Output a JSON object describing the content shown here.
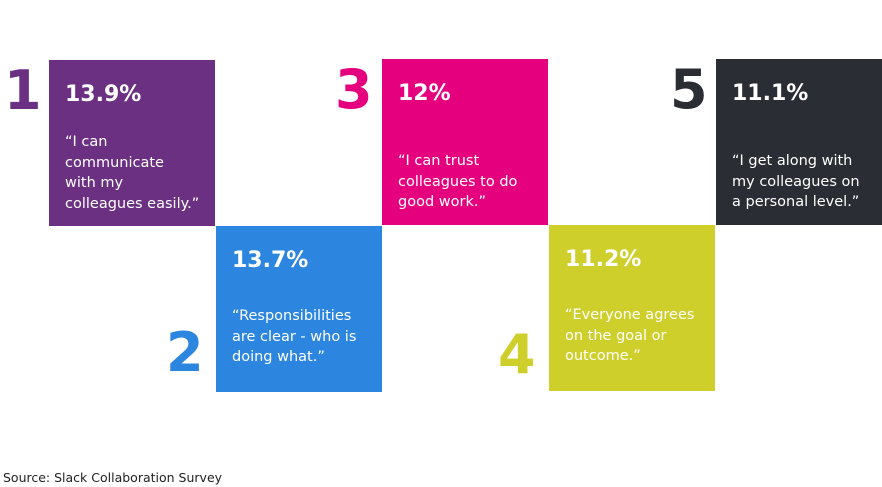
{
  "items": [
    {
      "rank": "1",
      "percent": "13.9%",
      "quote_lines": [
        "“I can",
        "communicate",
        "with my",
        "colleagues easily.”"
      ],
      "color": "#6b3081"
    },
    {
      "rank": "2",
      "percent": "13.7%",
      "quote_lines": [
        "“Responsibilities",
        "are clear - who is",
        "doing what.”"
      ],
      "color": "#2c86e0"
    },
    {
      "rank": "3",
      "percent": "12%",
      "quote_lines": [
        "“I can trust",
        "colleagues to do",
        "good work.”"
      ],
      "color": "#e5007d"
    },
    {
      "rank": "4",
      "percent": "11.2%",
      "quote_lines": [
        "“Everyone agrees",
        "on the goal or",
        "outcome.”"
      ],
      "color": "#cfcf2b"
    },
    {
      "rank": "5",
      "percent": "11.1%",
      "quote_lines": [
        "“I get along with",
        "my colleagues on",
        "a personal level.”"
      ],
      "color": "#2a2d33"
    }
  ],
  "source": "Source: Slack Collaboration Survey"
}
